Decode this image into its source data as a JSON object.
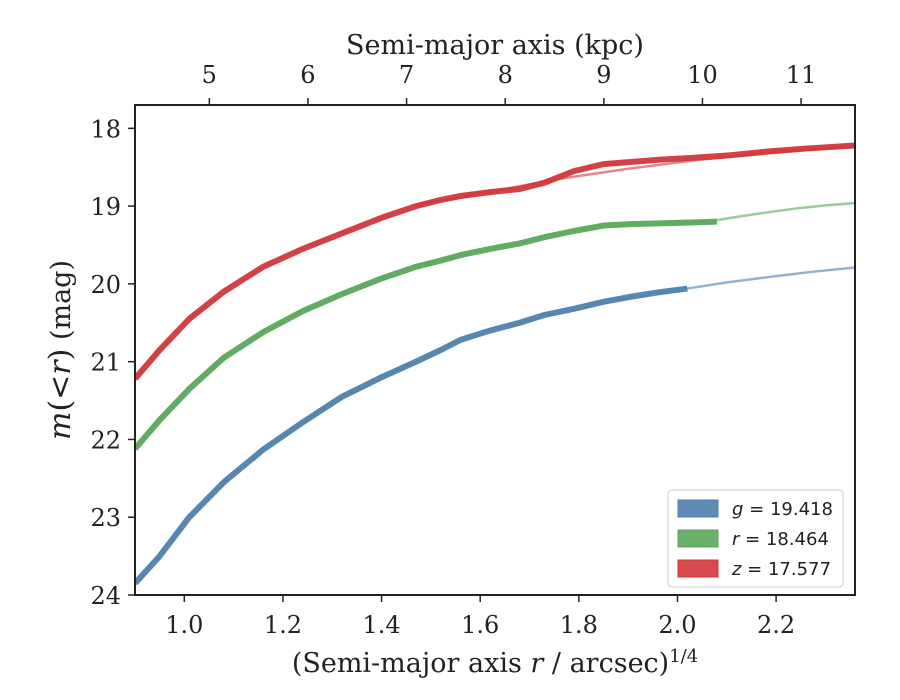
{
  "chart_data": {
    "type": "line",
    "xlabel": "(Semi-major axis r / arcsec)^{1/4}",
    "ylabel": "m(<r) (mag)",
    "top_xlabel": "Semi-major axis (kpc)",
    "xlim": [
      0.9,
      2.36
    ],
    "ylim": [
      24,
      17.7
    ],
    "y_inverted": true,
    "grid": false,
    "legend_position": "lower-right",
    "x_ticks": [
      "1.0",
      "1.2",
      "1.4",
      "1.6",
      "1.8",
      "2.0",
      "2.2"
    ],
    "y_ticks": [
      "18",
      "19",
      "20",
      "21",
      "22",
      "23",
      "24"
    ],
    "top_x_ticks": [
      "5",
      "6",
      "7",
      "8",
      "9",
      "10",
      "11"
    ],
    "top_x_tick_positions": [
      1.0,
      1.2,
      1.4,
      1.6,
      1.8,
      2.0,
      2.2
    ],
    "series": [
      {
        "name": "g = 19.418",
        "band": "g",
        "total_mag": "19.418",
        "color": "#4e7fad",
        "x": [
          0.9,
          0.95,
          1.01,
          1.08,
          1.16,
          1.24,
          1.32,
          1.4,
          1.47,
          1.52,
          1.56,
          1.62,
          1.68,
          1.73,
          1.79,
          1.85,
          1.91,
          1.96,
          2.02
        ],
        "y": [
          23.85,
          23.5,
          23.0,
          22.55,
          22.13,
          21.78,
          21.45,
          21.2,
          21.0,
          20.85,
          20.72,
          20.6,
          20.5,
          20.4,
          20.32,
          20.23,
          20.16,
          20.11,
          20.06
        ],
        "model_x": [
          2.02,
          2.1,
          2.2,
          2.28,
          2.36
        ],
        "model_y": [
          20.06,
          19.98,
          19.9,
          19.84,
          19.79
        ]
      },
      {
        "name": "r = 18.464",
        "band": "r",
        "total_mag": "18.464",
        "color": "#5aa65a",
        "x": [
          0.9,
          0.95,
          1.01,
          1.08,
          1.16,
          1.24,
          1.32,
          1.4,
          1.47,
          1.52,
          1.56,
          1.62,
          1.68,
          1.73,
          1.79,
          1.85,
          1.91,
          1.97,
          2.03,
          2.08
        ],
        "y": [
          22.12,
          21.75,
          21.35,
          20.95,
          20.62,
          20.35,
          20.13,
          19.93,
          19.78,
          19.7,
          19.63,
          19.55,
          19.48,
          19.4,
          19.32,
          19.25,
          19.23,
          19.22,
          19.21,
          19.2
        ],
        "model_x": [
          2.08,
          2.16,
          2.24,
          2.3,
          2.36
        ],
        "model_y": [
          19.18,
          19.1,
          19.03,
          18.99,
          18.96
        ]
      },
      {
        "name": "z = 17.577",
        "band": "z",
        "total_mag": "17.577",
        "color": "#d1373a",
        "x": [
          0.9,
          0.95,
          1.01,
          1.08,
          1.16,
          1.24,
          1.32,
          1.4,
          1.47,
          1.52,
          1.56,
          1.62,
          1.68,
          1.73,
          1.79,
          1.85,
          1.91,
          1.97,
          2.03,
          2.1,
          2.18,
          2.26,
          2.36
        ],
        "y": [
          21.22,
          20.85,
          20.45,
          20.1,
          19.78,
          19.55,
          19.35,
          19.15,
          19.0,
          18.92,
          18.87,
          18.82,
          18.78,
          18.7,
          18.55,
          18.46,
          18.43,
          18.4,
          18.38,
          18.35,
          18.3,
          18.26,
          18.22
        ],
        "model_x": [
          1.47,
          1.6,
          1.75,
          1.9,
          2.05,
          2.2,
          2.36
        ],
        "model_y": [
          18.99,
          18.84,
          18.66,
          18.52,
          18.4,
          18.31,
          18.22
        ]
      }
    ]
  }
}
